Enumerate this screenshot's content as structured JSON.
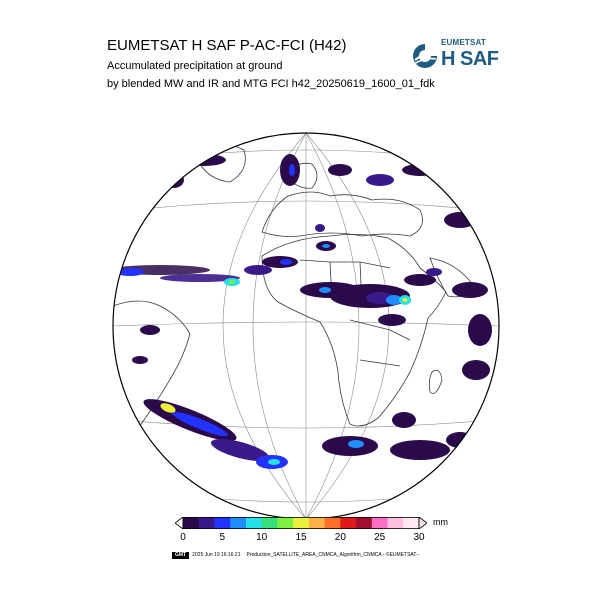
{
  "header": {
    "title": "EUMETSAT H SAF P-AC-FCI (H42)",
    "subtitle_line1": "Accumulated precipitation at ground",
    "subtitle_line2": "by blended MW and IR and MTG FCI h42_20250619_1600_01_fdk"
  },
  "logo": {
    "top_text": "EUMETSAT",
    "main_text": "H SAF",
    "color": "#1f5b82",
    "icon": "hsaf-swoosh-icon"
  },
  "map": {
    "projection": "geostationary full disk",
    "background": "#ffffff",
    "outline_color": "#000000",
    "graticule": true
  },
  "legend": {
    "unit": "mm",
    "ticks": [
      "0",
      "5",
      "10",
      "15",
      "20",
      "25",
      "30"
    ],
    "colors": [
      "#2a0a4a",
      "#3a1a8a",
      "#2233ff",
      "#1f8cff",
      "#26e0e8",
      "#35e07a",
      "#7ef040",
      "#e8f03a",
      "#ffb347",
      "#ff6f2a",
      "#e01818",
      "#a0102c",
      "#ff6fc8",
      "#ffc0e0",
      "#ffe8f2"
    ]
  },
  "footer": {
    "badge": "GMT",
    "timestamp": "2025 Jun 19 16:16:21",
    "production": "Production_SATELLITE_AREA_CNMCA_Algorithm_CNMCA - ©EUMETSAT--"
  }
}
